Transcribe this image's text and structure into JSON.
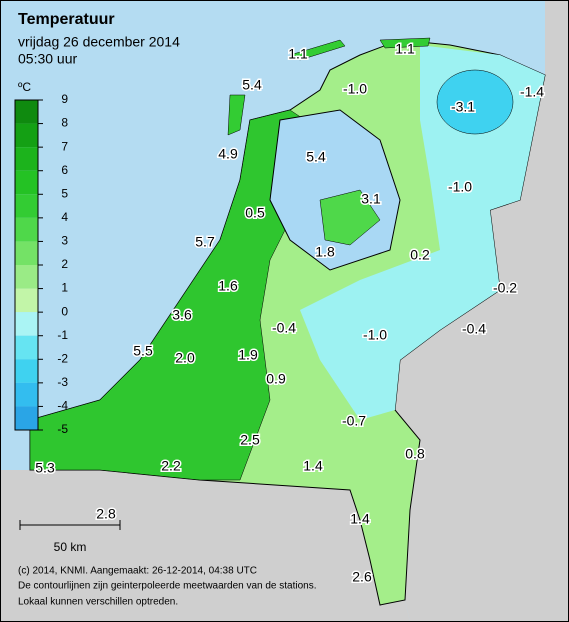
{
  "header": {
    "title": "Temperatuur",
    "date": "vrijdag 26 december 2014",
    "time": "05:30 uur"
  },
  "legend": {
    "unit": "ºC",
    "ticks": [
      9,
      8,
      7,
      6,
      5,
      4,
      3,
      2,
      1,
      0,
      -1,
      -2,
      -3,
      -4,
      -5
    ],
    "colors": [
      "#0f8a0f",
      "#14a014",
      "#1cb31c",
      "#24c224",
      "#33cc33",
      "#4fd84a",
      "#74e266",
      "#9aeb86",
      "#c2f5a8",
      "#aaf4f4",
      "#66e4f2",
      "#3fd2f0",
      "#33bdef",
      "#2aa5e6"
    ]
  },
  "stations": [
    "1.1",
    "1.1",
    "5.4",
    "-1.0",
    "-3.1",
    "-1.4",
    "4.9",
    "5.4",
    "-1.0",
    "3.1",
    "0.5",
    "5.7",
    "1.8",
    "0.2",
    "-0.2",
    "1.6",
    "3.6",
    "-0.4",
    "-1.0",
    "-0.4",
    "5.5",
    "2.0",
    "1.9",
    "0.9",
    "-0.7",
    "2.5",
    "0.8",
    "1.4",
    "5.3",
    "2.2",
    "2.8",
    "1.4",
    "2.6"
  ],
  "scale": "50 km",
  "footer": [
    "(c) 2014, KNMI. Aangemaakt: 26-12-2014, 04:38 UTC",
    "De contourlijnen zijn geinterpoleerde meetwaarden van de stations.",
    "Lokaal kunnen verschillen optreden."
  ]
}
